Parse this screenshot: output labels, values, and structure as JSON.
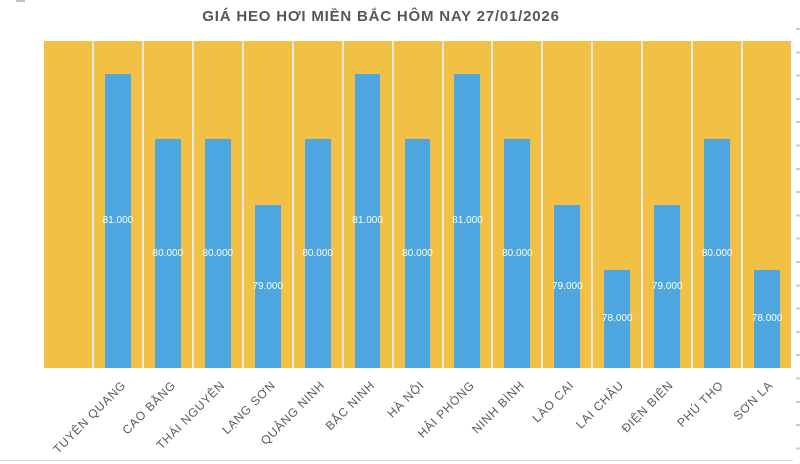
{
  "page": {
    "background_color": "#ffffff"
  },
  "chart_data": {
    "type": "bar",
    "title": "GIÁ HEO HƠI MIỀN BẮC HÔM NAY 27/01/2026",
    "categories": [
      "TUYÊN QUANG",
      "CAO BẰNG",
      "THÁI NGUYÊN",
      "LẠNG SƠN",
      "QUẢNG NINH",
      "BẮC NINH",
      "HÀ NỘI",
      "HẢI PHÒNG",
      "NINH BÌNH",
      "LÀO CAI",
      "LAI CHÂU",
      "ĐIỆN BIÊN",
      "PHÚ THỌ",
      "SƠN LA"
    ],
    "values": [
      81000,
      80000,
      80000,
      79000,
      80000,
      81000,
      80000,
      81000,
      80000,
      79000,
      78000,
      79000,
      80000,
      78000
    ],
    "value_labels": [
      "81.000",
      "80.000",
      "80.000",
      "79.000",
      "80.000",
      "81.000",
      "80.000",
      "81.000",
      "80.000",
      "79.000",
      "78.000",
      "79.000",
      "80.000",
      "78.000"
    ],
    "xlabel": "",
    "ylabel": "",
    "ylim": [
      76500,
      81500
    ],
    "leading_empty_category": true,
    "grid": "vertical-column-separators-only",
    "legend": "none",
    "value_label_position": "centered-inside-bar",
    "colors": {
      "bar": "#4EA6E0",
      "plot_background": "#F2C044",
      "column_separator": "#ECE9E2",
      "title_text": "#575757",
      "axis_label_text": "#595959",
      "value_label_text": "#FFFFFF"
    }
  }
}
